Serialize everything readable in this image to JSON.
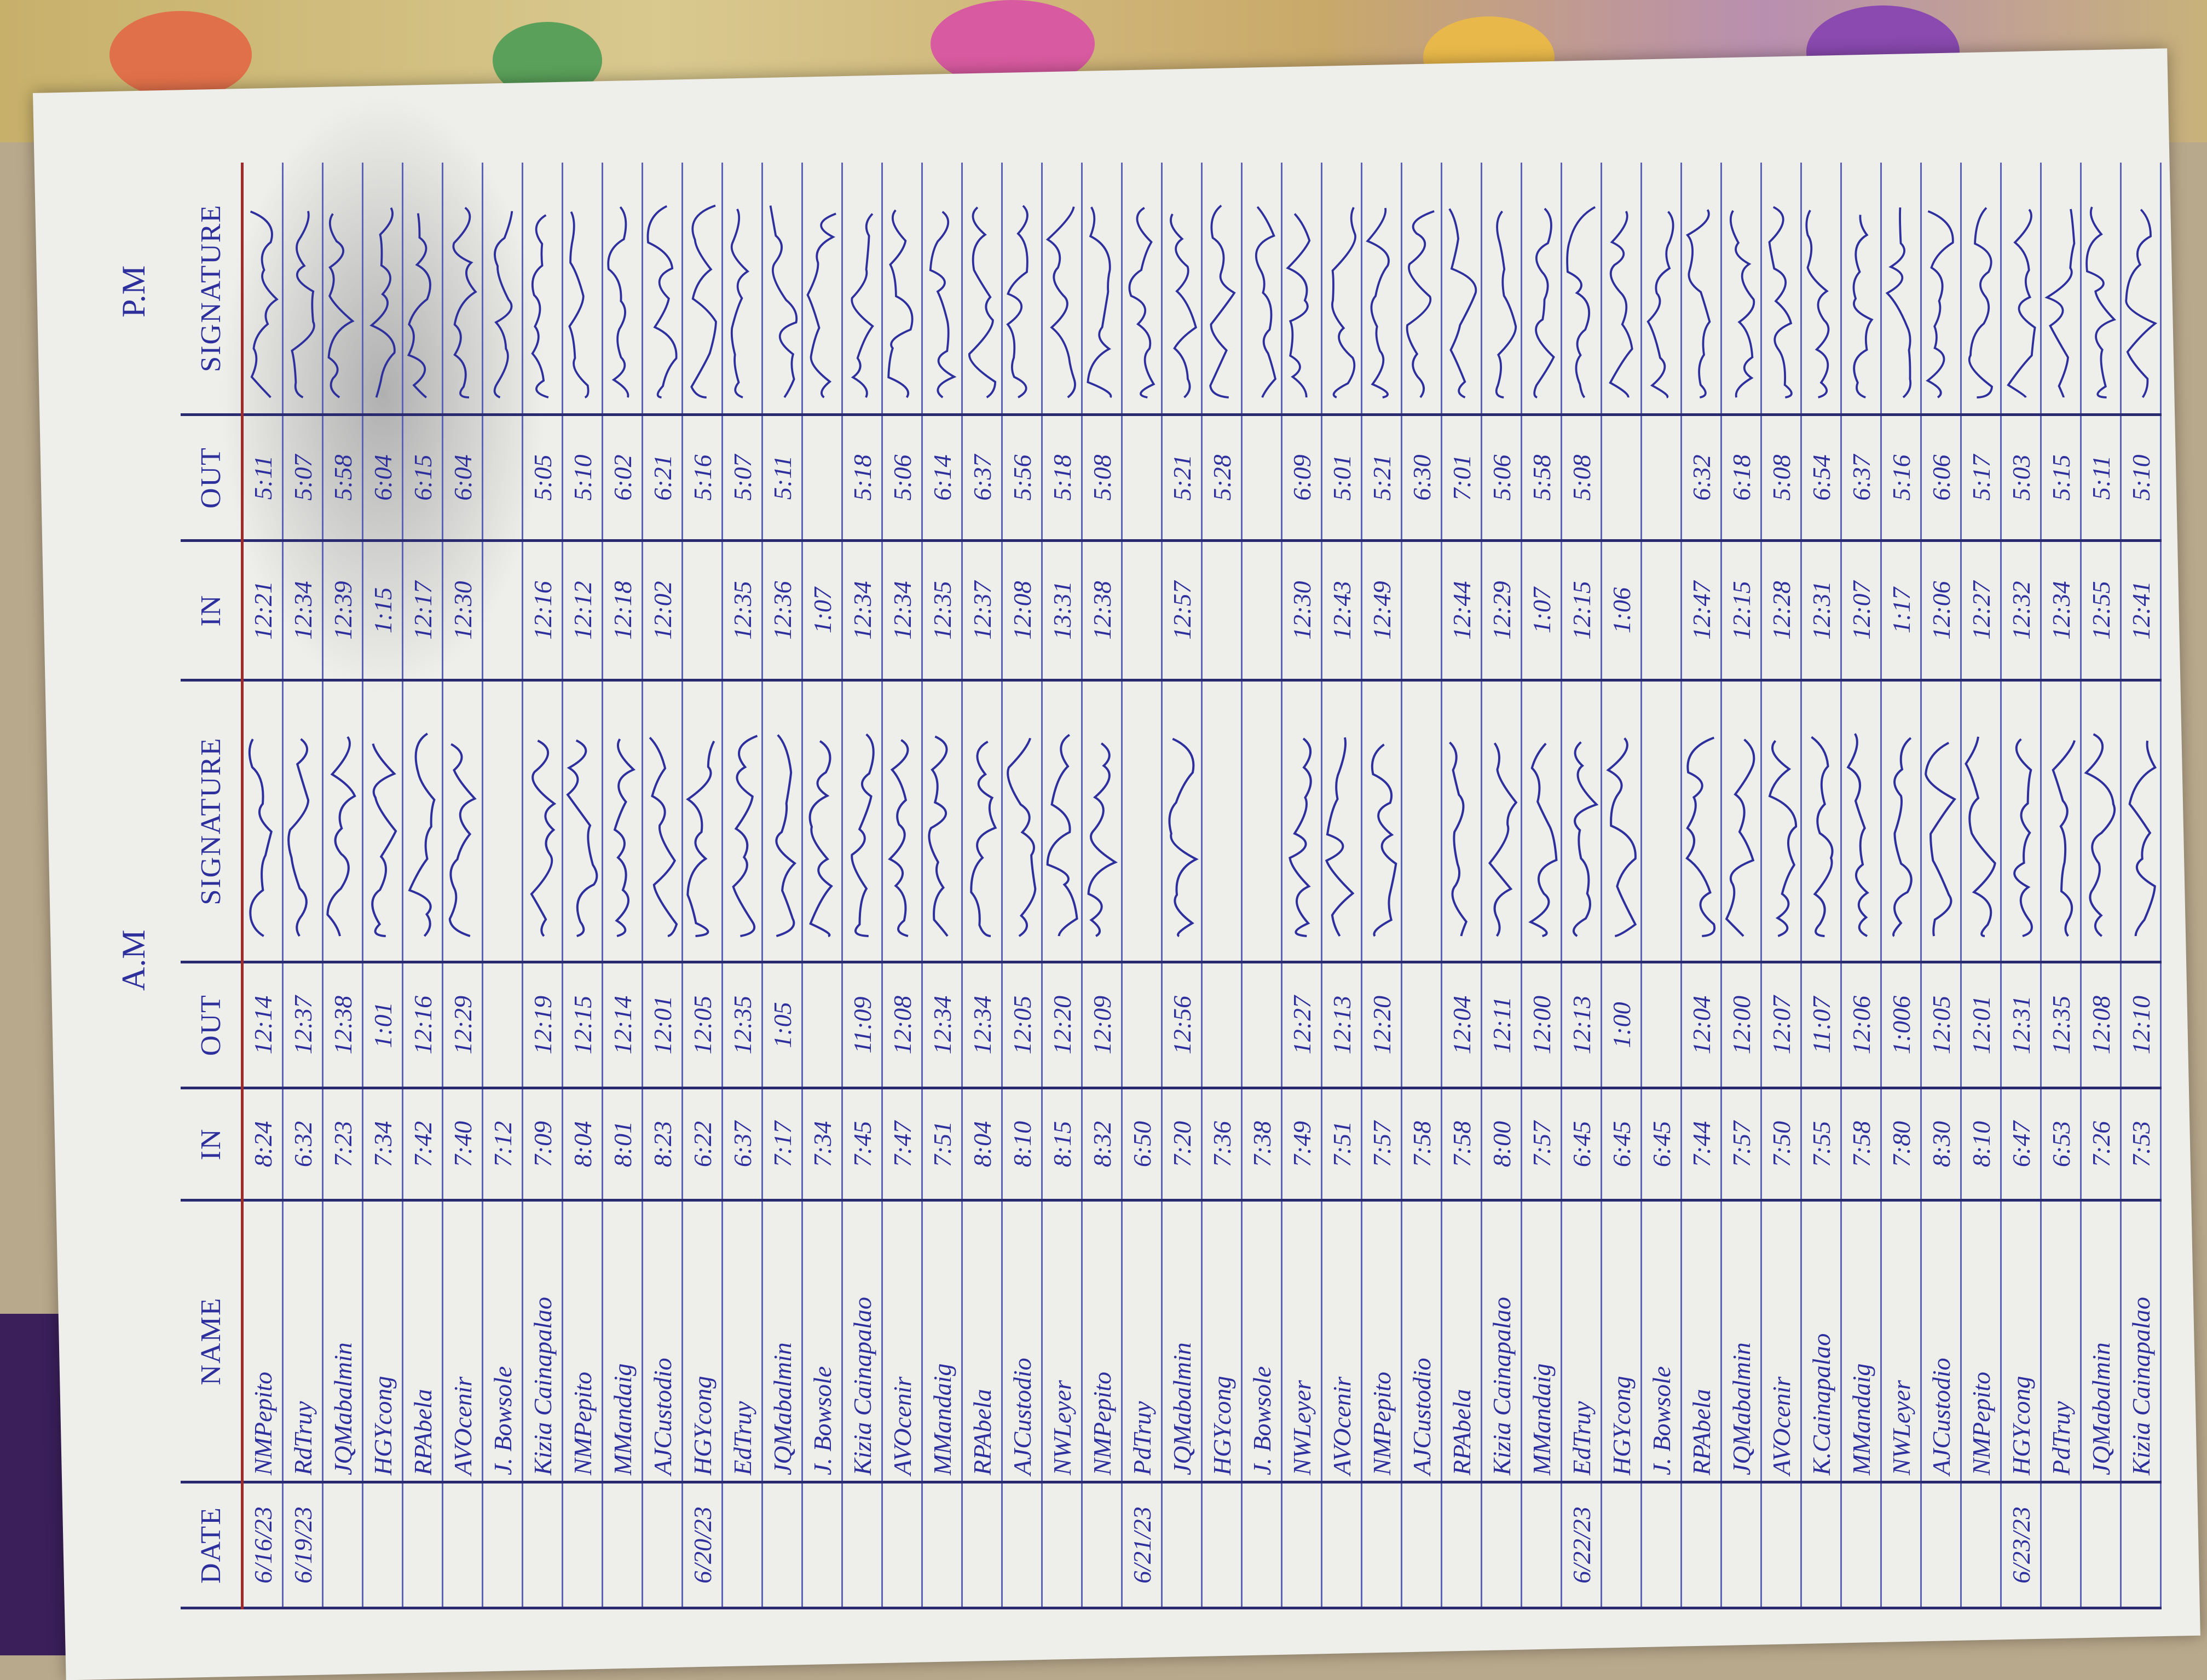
{
  "header": {
    "am_label": "A.M",
    "pm_label": "P.M",
    "columns": [
      "DATE",
      "NAME",
      "IN",
      "OUT",
      "SIGNATURE",
      "IN",
      "OUT",
      "SIGNATURE"
    ]
  },
  "colors": {
    "ink": "#2d2f9c",
    "ruling": "#5a63b8",
    "margin_line": "#a02a2a"
  },
  "rows": [
    {
      "date": "6/16/23",
      "name": "NMPepito",
      "am_in": "8:24",
      "am_out": "12:14",
      "pm_in": "12:21",
      "pm_out": "5:11"
    },
    {
      "date": "6/19/23",
      "name": "RdTruy",
      "am_in": "6:32",
      "am_out": "12:37",
      "pm_in": "12:34",
      "pm_out": "5:07"
    },
    {
      "date": "",
      "name": "JQMabalmin",
      "am_in": "7:23",
      "am_out": "12:38",
      "pm_in": "12:39",
      "pm_out": "5:58"
    },
    {
      "date": "",
      "name": "HGYcong",
      "am_in": "7:34",
      "am_out": "1:01",
      "pm_in": "1:15",
      "pm_out": "6:04"
    },
    {
      "date": "",
      "name": "RPAbela",
      "am_in": "7:42",
      "am_out": "12:16",
      "pm_in": "12:17",
      "pm_out": "6:15"
    },
    {
      "date": "",
      "name": "AVOcenir",
      "am_in": "7:40",
      "am_out": "12:29",
      "pm_in": "12:30",
      "pm_out": "6:04"
    },
    {
      "date": "",
      "name": "J. Bowsole",
      "am_in": "7:12",
      "am_out": "",
      "pm_in": "",
      "pm_out": ""
    },
    {
      "date": "",
      "name": "Kizia Cainapalao",
      "am_in": "7:09",
      "am_out": "12:19",
      "pm_in": "12:16",
      "pm_out": "5:05"
    },
    {
      "date": "",
      "name": "NMPepito",
      "am_in": "8:04",
      "am_out": "12:15",
      "pm_in": "12:12",
      "pm_out": "5:10"
    },
    {
      "date": "",
      "name": "MMandaig",
      "am_in": "8:01",
      "am_out": "12:14",
      "pm_in": "12:18",
      "pm_out": "6:02"
    },
    {
      "date": "",
      "name": "AJCustodio",
      "am_in": "8:23",
      "am_out": "12:01",
      "pm_in": "12:02",
      "pm_out": "6:21"
    },
    {
      "date": "6/20/23",
      "name": "HGYcong",
      "am_in": "6:22",
      "am_out": "12:05",
      "pm_in": "",
      "pm_out": "5:16"
    },
    {
      "date": "",
      "name": "EdTruy",
      "am_in": "6:37",
      "am_out": "12:35",
      "pm_in": "12:35",
      "pm_out": "5:07"
    },
    {
      "date": "",
      "name": "JQMabalmin",
      "am_in": "7:17",
      "am_out": "1:05",
      "pm_in": "12:36",
      "pm_out": "5:11"
    },
    {
      "date": "",
      "name": "J. Bowsole",
      "am_in": "7:34",
      "am_out": "",
      "pm_in": "1:07",
      "pm_out": ""
    },
    {
      "date": "",
      "name": "Kizia Cainapalao",
      "am_in": "7:45",
      "am_out": "11:09",
      "pm_in": "12:34",
      "pm_out": "5:18"
    },
    {
      "date": "",
      "name": "AVOcenir",
      "am_in": "7:47",
      "am_out": "12:08",
      "pm_in": "12:34",
      "pm_out": "5:06"
    },
    {
      "date": "",
      "name": "MMandaig",
      "am_in": "7:51",
      "am_out": "12:34",
      "pm_in": "12:35",
      "pm_out": "6:14"
    },
    {
      "date": "",
      "name": "RPAbela",
      "am_in": "8:04",
      "am_out": "12:34",
      "pm_in": "12:37",
      "pm_out": "6:37"
    },
    {
      "date": "",
      "name": "AJCustodio",
      "am_in": "8:10",
      "am_out": "12:05",
      "pm_in": "12:08",
      "pm_out": "5:56"
    },
    {
      "date": "",
      "name": "NWLeyer",
      "am_in": "8:15",
      "am_out": "12:20",
      "pm_in": "13:31",
      "pm_out": "5:18"
    },
    {
      "date": "",
      "name": "NMPepito",
      "am_in": "8:32",
      "am_out": "12:09",
      "pm_in": "12:38",
      "pm_out": "5:08"
    },
    {
      "date": "6/21/23",
      "name": "PdTruy",
      "am_in": "6:50",
      "am_out": "",
      "pm_in": "",
      "pm_out": ""
    },
    {
      "date": "",
      "name": "JQMabalmin",
      "am_in": "7:20",
      "am_out": "12:56",
      "pm_in": "12:57",
      "pm_out": "5:21"
    },
    {
      "date": "",
      "name": "HGYcong",
      "am_in": "7:36",
      "am_out": "",
      "pm_in": "",
      "pm_out": "5:28"
    },
    {
      "date": "",
      "name": "J. Bowsole",
      "am_in": "7:38",
      "am_out": "",
      "pm_in": "",
      "pm_out": ""
    },
    {
      "date": "",
      "name": "NWLeyer",
      "am_in": "7:49",
      "am_out": "12:27",
      "pm_in": "12:30",
      "pm_out": "6:09"
    },
    {
      "date": "",
      "name": "AVOcenir",
      "am_in": "7:51",
      "am_out": "12:13",
      "pm_in": "12:43",
      "pm_out": "5:01"
    },
    {
      "date": "",
      "name": "NMPepito",
      "am_in": "7:57",
      "am_out": "12:20",
      "pm_in": "12:49",
      "pm_out": "5:21"
    },
    {
      "date": "",
      "name": "AJCustodio",
      "am_in": "7:58",
      "am_out": "",
      "pm_in": "",
      "pm_out": "6:30"
    },
    {
      "date": "",
      "name": "RPAbela",
      "am_in": "7:58",
      "am_out": "12:04",
      "pm_in": "12:44",
      "pm_out": "7:01"
    },
    {
      "date": "",
      "name": "Kizia Cainapalao",
      "am_in": "8:00",
      "am_out": "12:11",
      "pm_in": "12:29",
      "pm_out": "5:06"
    },
    {
      "date": "",
      "name": "MMandaig",
      "am_in": "7:57",
      "am_out": "12:00",
      "pm_in": "1:07",
      "pm_out": "5:58"
    },
    {
      "date": "6/22/23",
      "name": "EdTruy",
      "am_in": "6:45",
      "am_out": "12:13",
      "pm_in": "12:15",
      "pm_out": "5:08"
    },
    {
      "date": "",
      "name": "HGYcong",
      "am_in": "6:45",
      "am_out": "1:00",
      "pm_in": "1:06",
      "pm_out": ""
    },
    {
      "date": "",
      "name": "J. Bowsole",
      "am_in": "6:45",
      "am_out": "",
      "pm_in": "",
      "pm_out": ""
    },
    {
      "date": "",
      "name": "RPAbela",
      "am_in": "7:44",
      "am_out": "12:04",
      "pm_in": "12:47",
      "pm_out": "6:32"
    },
    {
      "date": "",
      "name": "JQMabalmin",
      "am_in": "7:57",
      "am_out": "12:00",
      "pm_in": "12:15",
      "pm_out": "6:18"
    },
    {
      "date": "",
      "name": "AVOcenir",
      "am_in": "7:50",
      "am_out": "12:07",
      "pm_in": "12:28",
      "pm_out": "5:08"
    },
    {
      "date": "",
      "name": "K.Cainapalao",
      "am_in": "7:55",
      "am_out": "11:07",
      "pm_in": "12:31",
      "pm_out": "6:54"
    },
    {
      "date": "",
      "name": "MMandaig",
      "am_in": "7:58",
      "am_out": "12:06",
      "pm_in": "12:07",
      "pm_out": "6:37"
    },
    {
      "date": "",
      "name": "NWLeyer",
      "am_in": "7:80",
      "am_out": "1:006",
      "pm_in": "1:17",
      "pm_out": "5:16"
    },
    {
      "date": "",
      "name": "AJCustodio",
      "am_in": "8:30",
      "am_out": "12:05",
      "pm_in": "12:06",
      "pm_out": "6:06"
    },
    {
      "date": "",
      "name": "NMPepito",
      "am_in": "8:10",
      "am_out": "12:01",
      "pm_in": "12:27",
      "pm_out": "5:17"
    },
    {
      "date": "6/23/23",
      "name": "HGYcong",
      "am_in": "6:47",
      "am_out": "12:31",
      "pm_in": "12:32",
      "pm_out": "5:03"
    },
    {
      "date": "",
      "name": "PdTruy",
      "am_in": "6:53",
      "am_out": "12:35",
      "pm_in": "12:34",
      "pm_out": "5:15"
    },
    {
      "date": "",
      "name": "JQMabalmin",
      "am_in": "7:26",
      "am_out": "12:08",
      "pm_in": "12:55",
      "pm_out": "5:11"
    },
    {
      "date": "",
      "name": "Kizia Cainapalao",
      "am_in": "7:53",
      "am_out": "12:10",
      "pm_in": "12:41",
      "pm_out": "5:10"
    }
  ]
}
